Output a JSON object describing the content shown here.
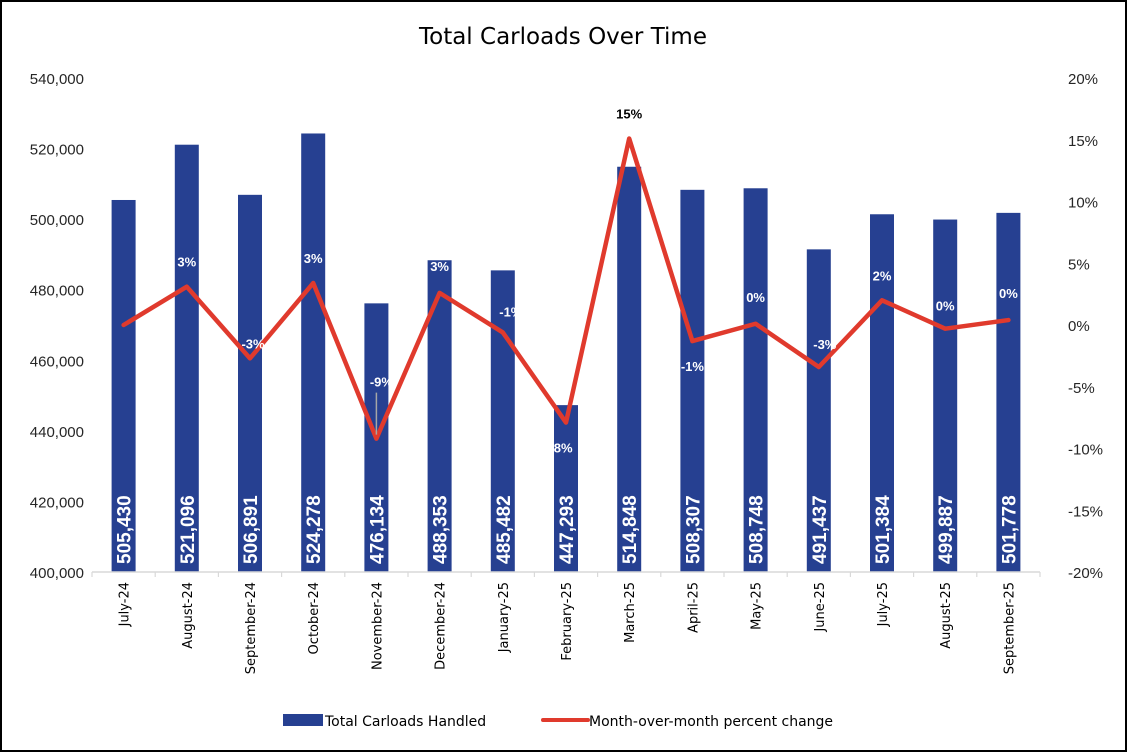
{
  "chart_data": {
    "type": "bar+line",
    "title": "Total Carloads Over Time",
    "categories": [
      "July-24",
      "August-24",
      "September-24",
      "October-24",
      "November-24",
      "December-24",
      "January-25",
      "February-25",
      "March-25",
      "April-25",
      "May-25",
      "June-25",
      "July-25",
      "August-25",
      "September-25"
    ],
    "series": [
      {
        "name": "Total Carloads Handled",
        "type": "bar",
        "axis": "left",
        "color": "#264091",
        "values": [
          505430,
          521096,
          506891,
          524278,
          476134,
          488353,
          485482,
          447293,
          514848,
          508307,
          508748,
          491437,
          501384,
          499887,
          501778
        ],
        "labels": [
          "505,430",
          "521,096",
          "506,891",
          "524,278",
          "476,134",
          "488,353",
          "485,482",
          "447,293",
          "514,848",
          "508,307",
          "508,748",
          "491,437",
          "501,384",
          "499,887",
          "501,778"
        ]
      },
      {
        "name": "Month-over-month percent change",
        "type": "line",
        "axis": "right",
        "color": "#E03A2D",
        "values": [
          0.0,
          3.1,
          -2.7,
          3.4,
          -9.2,
          2.6,
          -0.6,
          -7.9,
          15.1,
          -1.3,
          0.1,
          -3.4,
          2.0,
          -0.3,
          0.4
        ],
        "labels": [
          "",
          "3%",
          "-3%",
          "3%",
          "-9%",
          "3%",
          "-1%",
          "-8%",
          "15%",
          "-1%",
          "0%",
          "-3%",
          "2%",
          "0%",
          "0%"
        ]
      }
    ],
    "y_left": {
      "min": 400000,
      "max": 540000,
      "step": 20000,
      "ticks": [
        "400,000",
        "420,000",
        "440,000",
        "460,000",
        "480,000",
        "500,000",
        "520,000",
        "540,000"
      ]
    },
    "y_right": {
      "min": -20,
      "max": 20,
      "step": 5,
      "ticks": [
        "-20%",
        "-15%",
        "-10%",
        "-5%",
        "0%",
        "5%",
        "10%",
        "15%",
        "20%"
      ]
    },
    "grid": false,
    "legend": {
      "position": "bottom",
      "entries": [
        "Total Carloads Handled",
        "Month-over-month percent change"
      ]
    }
  }
}
